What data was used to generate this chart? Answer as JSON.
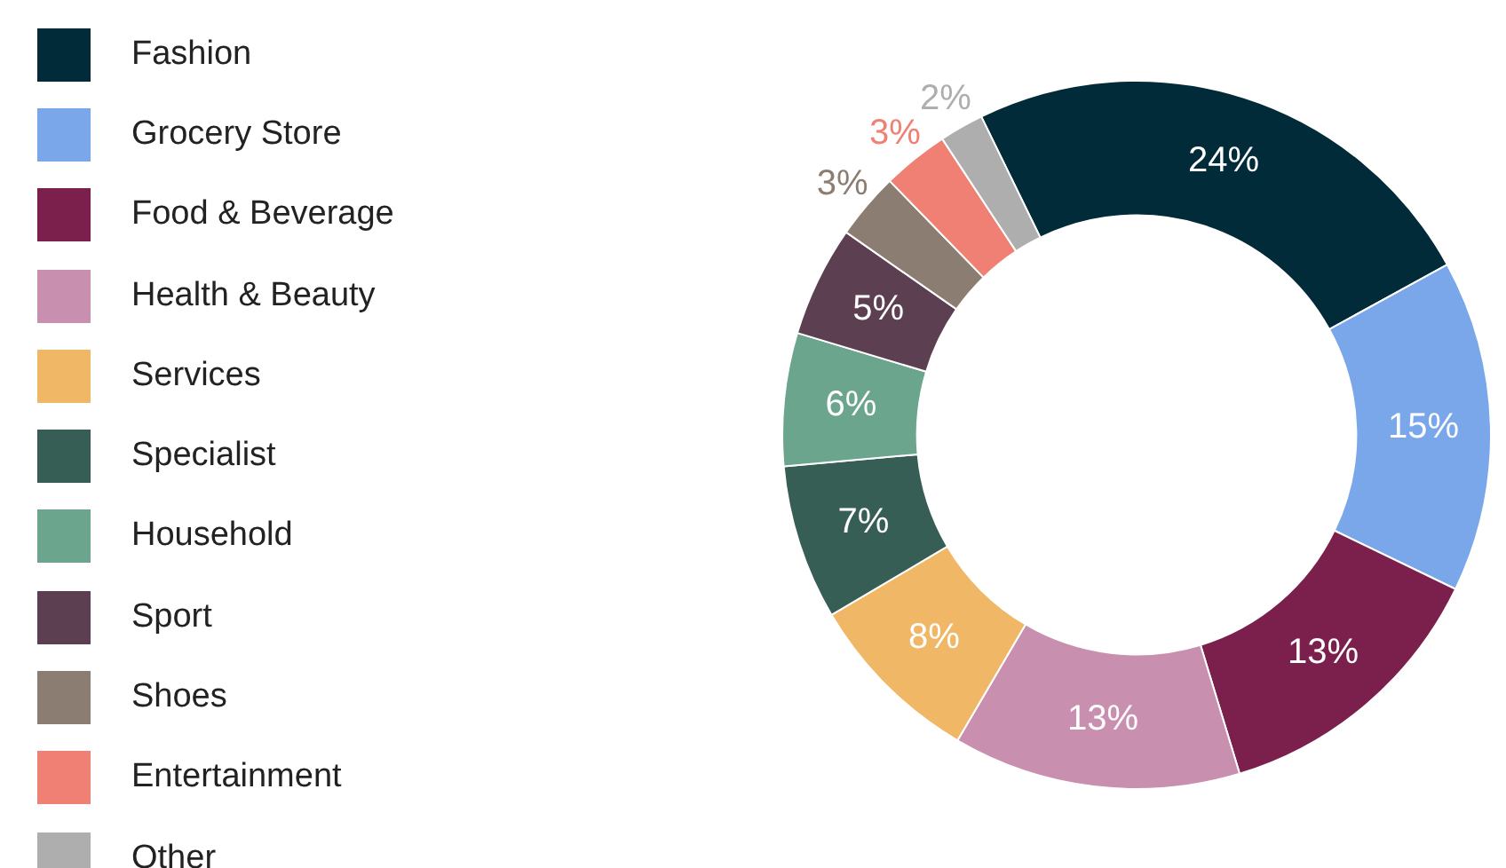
{
  "chart_data": {
    "type": "donut",
    "categories": [
      "Fashion",
      "Grocery Store",
      "Food & Beverage",
      "Health & Beauty",
      "Services",
      "Specialist",
      "Household",
      "Sport",
      "Shoes",
      "Entertainment",
      "Other"
    ],
    "values": [
      24,
      15,
      13,
      13,
      8,
      7,
      6,
      5,
      3,
      3,
      2
    ],
    "colors": [
      "#022b3a",
      "#7aa6ea",
      "#7b1f4c",
      "#c98fae",
      "#f0b866",
      "#365e55",
      "#6ba58e",
      "#5d3f52",
      "#8c7d72",
      "#f08074",
      "#aeaeae"
    ],
    "value_labels": [
      "24%",
      "15%",
      "13%",
      "13%",
      "8%",
      "7%",
      "6%",
      "5%",
      "3%",
      "3%",
      "2%"
    ],
    "legend": "left"
  }
}
